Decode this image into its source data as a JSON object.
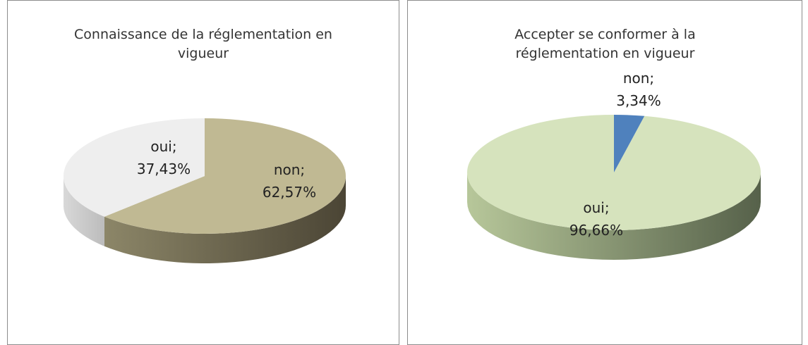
{
  "chart_data": [
    {
      "type": "pie",
      "title": "Connaissance de la réglementation en vigueur",
      "categories": [
        "non;",
        "oui;"
      ],
      "values": [
        62.57,
        37.43
      ],
      "value_labels": [
        "62,57%",
        "37,43%"
      ],
      "colors": [
        "#c0b993",
        "#eeeeee"
      ]
    },
    {
      "type": "pie",
      "title": "Accepter se conformer à la réglementation en vigueur",
      "categories": [
        "non;",
        "oui;"
      ],
      "values": [
        3.34,
        96.66
      ],
      "value_labels": [
        "3,34%",
        "96,66%"
      ],
      "colors": [
        "#4f81bd",
        "#d6e3bd"
      ]
    }
  ]
}
